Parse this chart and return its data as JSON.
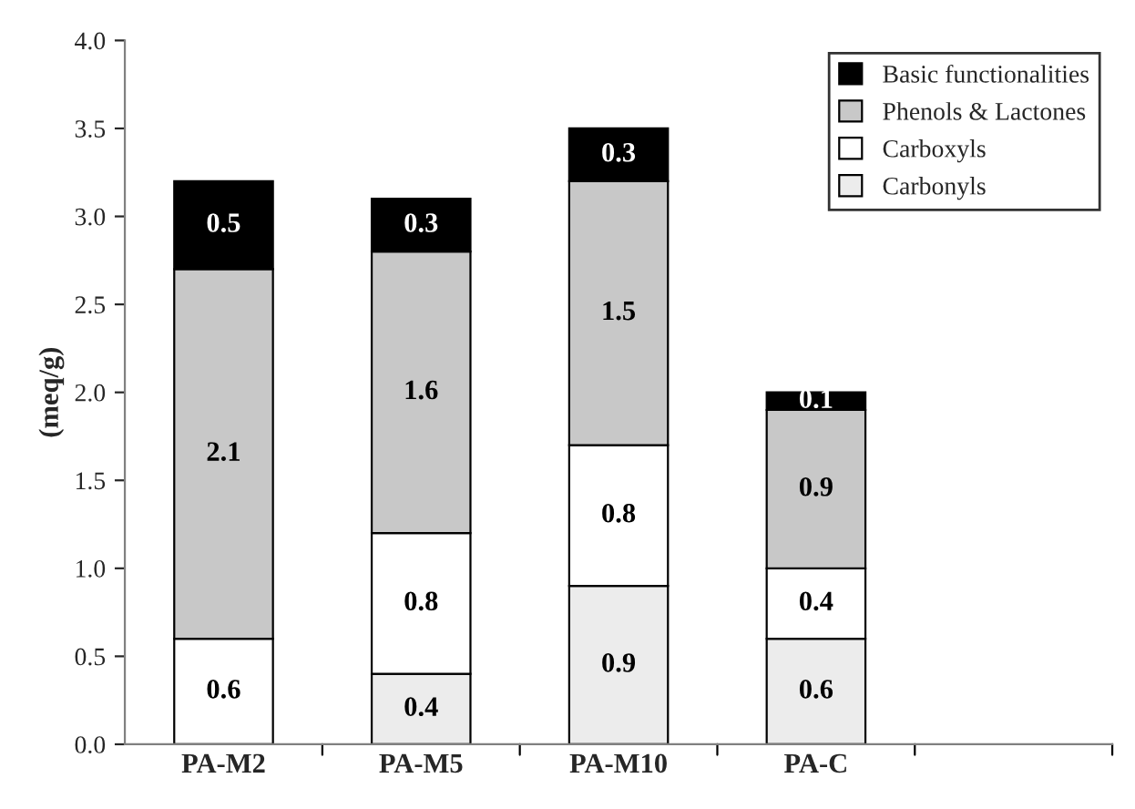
{
  "chart_data": {
    "type": "bar",
    "stacked": true,
    "ylabel": "(meq/g)",
    "categories": [
      "PA-M2",
      "PA-M5",
      "PA-M10",
      "PA-C",
      null
    ],
    "series": [
      {
        "name": "Carbonyls",
        "color": "#ececec",
        "values": [
          null,
          0.4,
          0.9,
          0.6,
          null
        ]
      },
      {
        "name": "Carboxyls",
        "color": "#ffffff",
        "values": [
          0.6,
          0.8,
          0.8,
          0.4,
          null
        ]
      },
      {
        "name": "Phenols & Lactones",
        "color": "#c8c8c8",
        "values": [
          2.1,
          1.6,
          1.5,
          0.9,
          null
        ]
      },
      {
        "name": "Basic functionalities",
        "color": "#000000",
        "values": [
          0.5,
          0.3,
          0.3,
          0.1,
          null
        ]
      }
    ],
    "ylim": [
      0,
      4
    ],
    "yticks": [
      {
        "value": 0,
        "label": "0.0"
      },
      {
        "value": 0.5,
        "label": "0.5"
      },
      {
        "value": 1,
        "label": "1.0"
      },
      {
        "value": 1.5,
        "label": "1.5"
      },
      {
        "value": 2,
        "label": "2.0"
      },
      {
        "value": 2.5,
        "label": "2.5"
      },
      {
        "value": 3,
        "label": "3.0"
      },
      {
        "value": 3.5,
        "label": "3.5"
      },
      {
        "value": 4,
        "label": "4.0"
      }
    ],
    "data_labels": true,
    "legend": "top right",
    "grid": false
  }
}
